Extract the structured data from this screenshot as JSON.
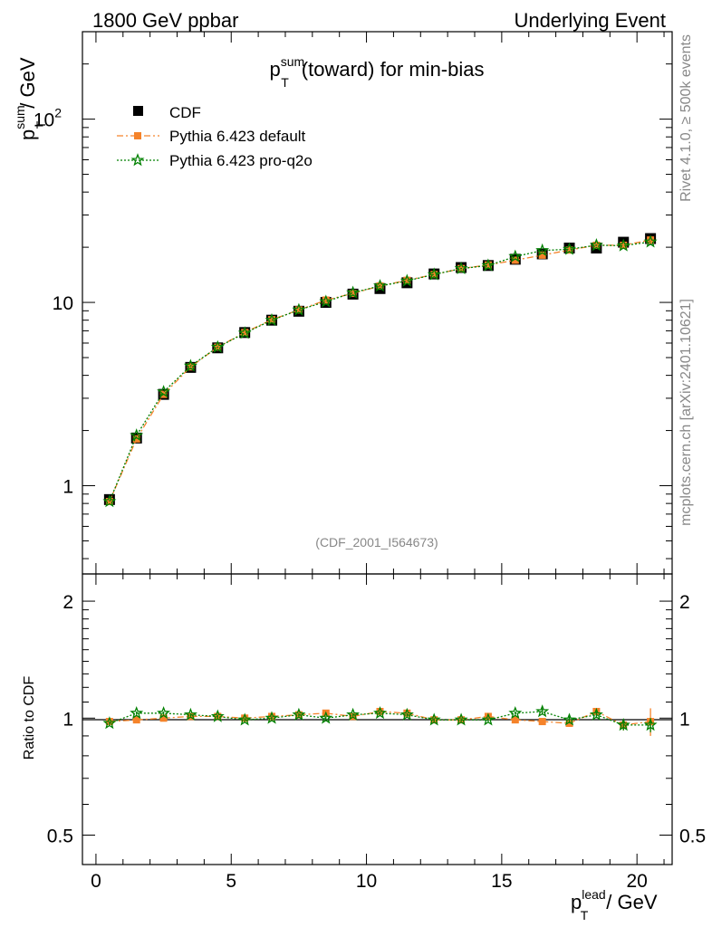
{
  "header": {
    "left": "1800 GeV ppbar",
    "right": "Underlying Event"
  },
  "side": {
    "rivet": "Rivet 4.1.0, ≥ 500k events",
    "mcplots": "mcplots.cern.ch [arXiv:2401.10621]"
  },
  "colors": {
    "cdf": "#000000",
    "default": "#f5832a",
    "proq2o": "#008000",
    "watermark": "#888888"
  },
  "chart_data": [
    {
      "type": "scatter",
      "title": "p_T^sum (toward) for min-bias",
      "title_parts": {
        "p": "p",
        "sup": "sum",
        "sub": "T",
        "rest": "(toward) for min-bias"
      },
      "ylabel_parts": {
        "p": "p",
        "sup": "sum",
        "sub": "T",
        "rest": "/ GeV"
      },
      "yscale": "log",
      "ylim": [
        0.33,
        300
      ],
      "xlim": [
        -0.5,
        21.3
      ],
      "yticks": [
        {
          "v": 1,
          "label": "1"
        },
        {
          "v": 10,
          "label": "10"
        },
        {
          "v": 100,
          "label": "10",
          "sup": "2"
        }
      ],
      "watermark": "(CDF_2001_I564673)",
      "legend_position": "top-left",
      "x": [
        0.5,
        1.5,
        2.5,
        3.5,
        4.5,
        5.5,
        6.5,
        7.5,
        8.5,
        9.5,
        10.5,
        11.5,
        12.5,
        13.5,
        14.5,
        15.5,
        16.5,
        17.5,
        18.5,
        19.5,
        20.5
      ],
      "series": [
        {
          "name": "CDF",
          "marker": "square",
          "values": [
            0.84,
            1.82,
            3.15,
            4.42,
            5.65,
            6.85,
            8.0,
            8.95,
            10.0,
            11.1,
            11.9,
            12.8,
            14.3,
            15.5,
            15.9,
            17.2,
            18.4,
            19.8,
            19.8,
            21.3,
            22.3
          ]
        },
        {
          "name": "Pythia 6.423 default",
          "marker": "filled-square",
          "line": "dashdot",
          "values": [
            0.82,
            1.8,
            3.15,
            4.45,
            5.7,
            6.85,
            8.05,
            9.1,
            10.3,
            11.2,
            12.3,
            13.2,
            14.2,
            15.3,
            16.0,
            17.0,
            18.1,
            19.3,
            20.5,
            20.5,
            21.9
          ]
        },
        {
          "name": "Pythia 6.423 pro-q2o",
          "marker": "star",
          "line": "dotted",
          "values": [
            0.82,
            1.88,
            3.25,
            4.5,
            5.7,
            6.8,
            8.0,
            9.1,
            10.1,
            11.3,
            12.3,
            13.1,
            14.2,
            15.3,
            15.9,
            17.8,
            19.2,
            19.5,
            20.5,
            20.4,
            21.4
          ]
        }
      ]
    },
    {
      "type": "scatter",
      "ylabel": "Ratio to CDF",
      "ylim": [
        0.42,
        2.35
      ],
      "yscale": "log",
      "yticks": [
        {
          "v": 0.5,
          "label": "0.5"
        },
        {
          "v": 1,
          "label": "1"
        },
        {
          "v": 2,
          "label": "2"
        }
      ],
      "xlabel_parts": {
        "p": "p",
        "sup": "lead",
        "sub": "T",
        "rest": "/ GeV"
      },
      "xticks": [
        0,
        5,
        10,
        15,
        20
      ],
      "x": [
        0.5,
        1.5,
        2.5,
        3.5,
        4.5,
        5.5,
        6.5,
        7.5,
        8.5,
        9.5,
        10.5,
        11.5,
        12.5,
        13.5,
        14.5,
        15.5,
        16.5,
        17.5,
        18.5,
        19.5,
        20.5
      ],
      "series": [
        {
          "name": "Pythia 6.423 default",
          "values": [
            0.98,
            0.99,
            1.0,
            1.01,
            1.01,
            1.0,
            1.01,
            1.02,
            1.03,
            1.01,
            1.04,
            1.03,
            0.99,
            0.99,
            1.01,
            0.99,
            0.98,
            0.97,
            1.04,
            0.96,
            0.98
          ],
          "errors": [
            0.01,
            0.01,
            0.01,
            0.01,
            0.01,
            0.01,
            0.01,
            0.01,
            0.01,
            0.01,
            0.01,
            0.01,
            0.01,
            0.01,
            0.01,
            0.01,
            0.01,
            0.02,
            0.02,
            0.03,
            0.08
          ]
        },
        {
          "name": "Pythia 6.423 pro-q2o",
          "values": [
            0.97,
            1.03,
            1.03,
            1.02,
            1.01,
            0.99,
            1.0,
            1.02,
            1.0,
            1.02,
            1.03,
            1.02,
            0.99,
            0.99,
            0.99,
            1.03,
            1.04,
            0.99,
            1.02,
            0.96,
            0.96
          ],
          "errors": [
            0.01,
            0.01,
            0.01,
            0.01,
            0.01,
            0.01,
            0.01,
            0.01,
            0.01,
            0.01,
            0.01,
            0.01,
            0.01,
            0.01,
            0.01,
            0.01,
            0.02,
            0.02,
            0.02,
            0.03,
            0.04
          ]
        }
      ]
    }
  ]
}
